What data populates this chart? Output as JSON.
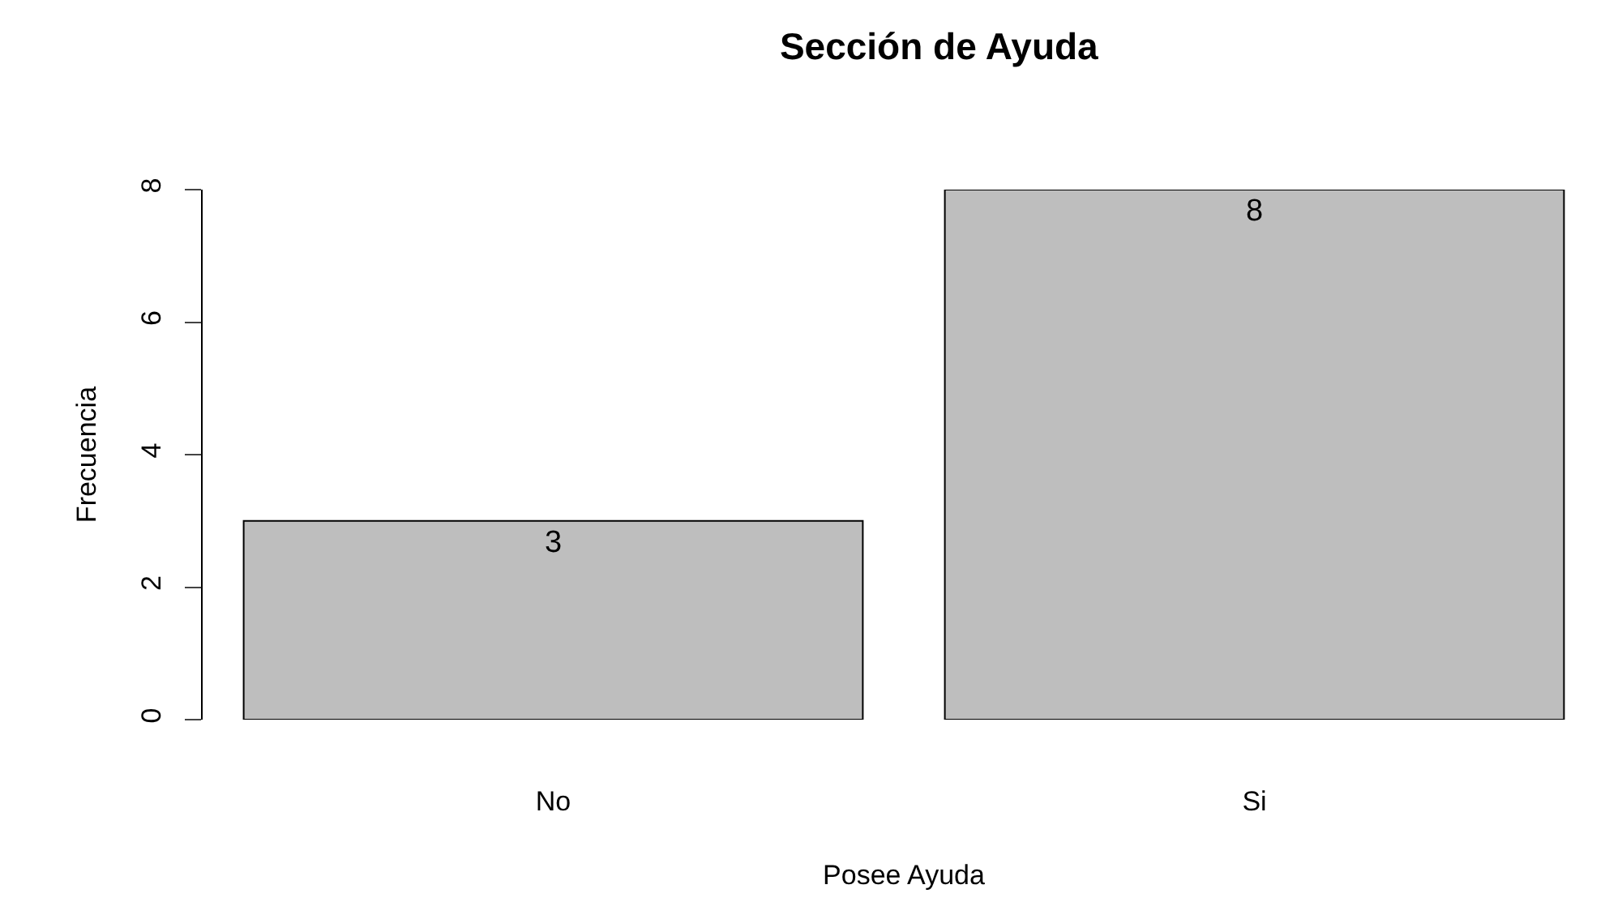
{
  "chart_data": {
    "type": "bar",
    "title": "Sección de Ayuda",
    "xlabel": "Posee Ayuda",
    "ylabel": "Frecuencia",
    "categories": [
      "No",
      "Si"
    ],
    "values": [
      3,
      8
    ],
    "color": "#bebebe",
    "ylim": [
      0,
      8
    ],
    "yticks": [
      0,
      2,
      4,
      6,
      8
    ],
    "grid": false,
    "legend": false,
    "data_labels": true
  }
}
